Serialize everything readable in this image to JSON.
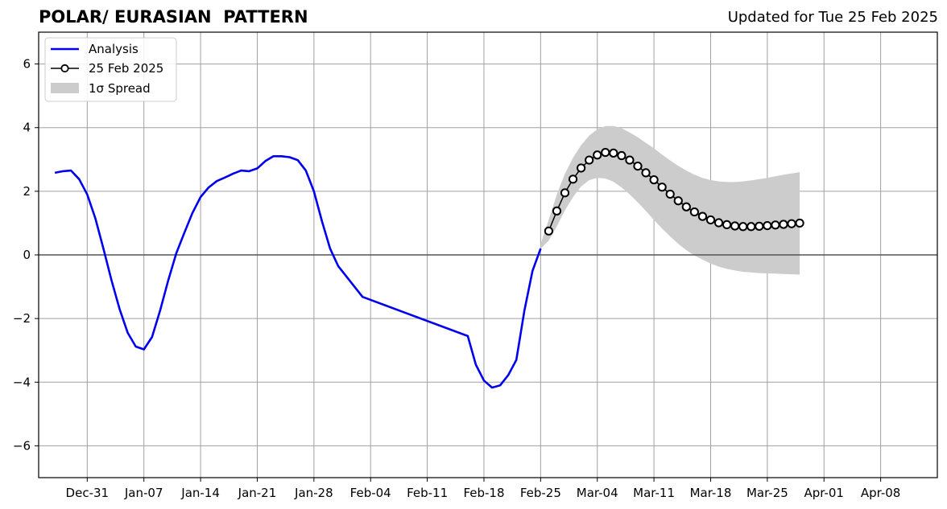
{
  "chart_data": {
    "type": "line",
    "title": "POLAR/ EURASIAN  PATTERN",
    "subtitle": "Updated for Tue 25 Feb 2025",
    "xlabel": "",
    "ylabel": "",
    "ylim": [
      -7,
      7
    ],
    "xlim": [
      "2024-12-25",
      "2025-04-15"
    ],
    "grid": true,
    "legend_position": "top-left",
    "x_ticks": [
      "Dec-31",
      "Jan-07",
      "Jan-14",
      "Jan-21",
      "Jan-28",
      "Feb-04",
      "Feb-11",
      "Feb-18",
      "Feb-25",
      "Mar-04",
      "Mar-11",
      "Mar-18",
      "Mar-25",
      "Apr-01",
      "Apr-08"
    ],
    "x_tick_dates": [
      "2024-12-31",
      "2025-01-07",
      "2025-01-14",
      "2025-01-21",
      "2025-01-28",
      "2025-02-04",
      "2025-02-11",
      "2025-02-18",
      "2025-02-25",
      "2025-03-04",
      "2025-03-11",
      "2025-03-18",
      "2025-03-25",
      "2025-04-01",
      "2025-04-08"
    ],
    "y_ticks": [
      -6,
      -4,
      -2,
      0,
      2,
      4,
      6
    ],
    "series": [
      {
        "name": "Analysis",
        "color": "#0000ee",
        "points": [
          [
            "2024-12-27",
            2.58
          ],
          [
            "2024-12-28",
            2.63
          ],
          [
            "2024-12-29",
            2.65
          ],
          [
            "2024-12-30",
            2.38
          ],
          [
            "2024-12-31",
            1.9
          ],
          [
            "2025-01-01",
            1.15
          ],
          [
            "2025-01-02",
            0.2
          ],
          [
            "2025-01-03",
            -0.8
          ],
          [
            "2025-01-04",
            -1.7
          ],
          [
            "2025-01-05",
            -2.45
          ],
          [
            "2025-01-06",
            -2.88
          ],
          [
            "2025-01-07",
            -2.97
          ],
          [
            "2025-01-08",
            -2.58
          ],
          [
            "2025-01-09",
            -1.75
          ],
          [
            "2025-01-10",
            -0.8
          ],
          [
            "2025-01-11",
            0.05
          ],
          [
            "2025-01-12",
            0.7
          ],
          [
            "2025-01-13",
            1.32
          ],
          [
            "2025-01-14",
            1.82
          ],
          [
            "2025-01-15",
            2.12
          ],
          [
            "2025-01-16",
            2.32
          ],
          [
            "2025-01-17",
            2.43
          ],
          [
            "2025-01-18",
            2.55
          ],
          [
            "2025-01-19",
            2.65
          ],
          [
            "2025-01-20",
            2.63
          ],
          [
            "2025-01-21",
            2.72
          ],
          [
            "2025-01-22",
            2.95
          ],
          [
            "2025-01-23",
            3.1
          ],
          [
            "2025-01-24",
            3.1
          ],
          [
            "2025-01-25",
            3.07
          ],
          [
            "2025-01-26",
            2.98
          ],
          [
            "2025-01-27",
            2.65
          ],
          [
            "2025-01-28",
            2.0
          ],
          [
            "2025-01-29",
            1.05
          ],
          [
            "2025-01-30",
            0.2
          ],
          [
            "2025-01-31",
            -0.35
          ],
          [
            "2025-02-03",
            -1.32
          ],
          [
            "2025-02-16",
            -2.55
          ],
          [
            "2025-02-17",
            -3.45
          ],
          [
            "2025-02-18",
            -3.95
          ],
          [
            "2025-02-19",
            -4.17
          ],
          [
            "2025-02-20",
            -4.1
          ],
          [
            "2025-02-21",
            -3.78
          ],
          [
            "2025-02-22",
            -3.3
          ],
          [
            "2025-02-23",
            -1.75
          ],
          [
            "2025-02-24",
            -0.5
          ],
          [
            "2025-02-25",
            0.2
          ]
        ]
      },
      {
        "name": "25 Feb 2025",
        "color": "#000000",
        "marker": "open-circle",
        "points": [
          [
            "2025-02-26",
            0.75
          ],
          [
            "2025-02-27",
            1.38
          ],
          [
            "2025-02-28",
            1.95
          ],
          [
            "2025-03-01",
            2.38
          ],
          [
            "2025-03-02",
            2.73
          ],
          [
            "2025-03-03",
            2.98
          ],
          [
            "2025-03-04",
            3.14
          ],
          [
            "2025-03-05",
            3.22
          ],
          [
            "2025-03-06",
            3.2
          ],
          [
            "2025-03-07",
            3.12
          ],
          [
            "2025-03-08",
            2.98
          ],
          [
            "2025-03-09",
            2.79
          ],
          [
            "2025-03-10",
            2.58
          ],
          [
            "2025-03-11",
            2.36
          ],
          [
            "2025-03-12",
            2.13
          ],
          [
            "2025-03-13",
            1.91
          ],
          [
            "2025-03-14",
            1.7
          ],
          [
            "2025-03-15",
            1.51
          ],
          [
            "2025-03-16",
            1.35
          ],
          [
            "2025-03-17",
            1.21
          ],
          [
            "2025-03-18",
            1.1
          ],
          [
            "2025-03-19",
            1.01
          ],
          [
            "2025-03-20",
            0.95
          ],
          [
            "2025-03-21",
            0.91
          ],
          [
            "2025-03-22",
            0.89
          ],
          [
            "2025-03-23",
            0.89
          ],
          [
            "2025-03-24",
            0.9
          ],
          [
            "2025-03-25",
            0.92
          ],
          [
            "2025-03-26",
            0.94
          ],
          [
            "2025-03-27",
            0.96
          ],
          [
            "2025-03-28",
            0.98
          ],
          [
            "2025-03-29",
            1.0
          ]
        ]
      }
    ],
    "spread": {
      "name": "1σ Spread",
      "color": "#cccccc",
      "upper": [
        [
          "2025-02-25",
          0.35
        ],
        [
          "2025-02-26",
          1.1
        ],
        [
          "2025-02-27",
          1.9
        ],
        [
          "2025-02-28",
          2.55
        ],
        [
          "2025-03-01",
          3.05
        ],
        [
          "2025-03-02",
          3.45
        ],
        [
          "2025-03-03",
          3.75
        ],
        [
          "2025-03-04",
          3.95
        ],
        [
          "2025-03-05",
          4.05
        ],
        [
          "2025-03-06",
          4.05
        ],
        [
          "2025-03-07",
          3.98
        ],
        [
          "2025-03-08",
          3.85
        ],
        [
          "2025-03-09",
          3.7
        ],
        [
          "2025-03-10",
          3.52
        ],
        [
          "2025-03-11",
          3.35
        ],
        [
          "2025-03-12",
          3.15
        ],
        [
          "2025-03-13",
          2.97
        ],
        [
          "2025-03-14",
          2.8
        ],
        [
          "2025-03-15",
          2.65
        ],
        [
          "2025-03-16",
          2.52
        ],
        [
          "2025-03-17",
          2.42
        ],
        [
          "2025-03-18",
          2.35
        ],
        [
          "2025-03-19",
          2.31
        ],
        [
          "2025-03-20",
          2.29
        ],
        [
          "2025-03-21",
          2.29
        ],
        [
          "2025-03-22",
          2.31
        ],
        [
          "2025-03-23",
          2.34
        ],
        [
          "2025-03-24",
          2.38
        ],
        [
          "2025-03-25",
          2.42
        ],
        [
          "2025-03-26",
          2.47
        ],
        [
          "2025-03-27",
          2.52
        ],
        [
          "2025-03-28",
          2.56
        ],
        [
          "2025-03-29",
          2.6
        ]
      ],
      "lower": [
        [
          "2025-02-25",
          0.2
        ],
        [
          "2025-02-26",
          0.45
        ],
        [
          "2025-02-27",
          0.9
        ],
        [
          "2025-02-28",
          1.4
        ],
        [
          "2025-03-01",
          1.82
        ],
        [
          "2025-03-02",
          2.15
        ],
        [
          "2025-03-03",
          2.35
        ],
        [
          "2025-03-04",
          2.42
        ],
        [
          "2025-03-05",
          2.4
        ],
        [
          "2025-03-06",
          2.3
        ],
        [
          "2025-03-07",
          2.12
        ],
        [
          "2025-03-08",
          1.9
        ],
        [
          "2025-03-09",
          1.65
        ],
        [
          "2025-03-10",
          1.38
        ],
        [
          "2025-03-11",
          1.1
        ],
        [
          "2025-03-12",
          0.83
        ],
        [
          "2025-03-13",
          0.58
        ],
        [
          "2025-03-14",
          0.35
        ],
        [
          "2025-03-15",
          0.15
        ],
        [
          "2025-03-16",
          -0.02
        ],
        [
          "2025-03-17",
          -0.15
        ],
        [
          "2025-03-18",
          -0.27
        ],
        [
          "2025-03-19",
          -0.37
        ],
        [
          "2025-03-20",
          -0.44
        ],
        [
          "2025-03-21",
          -0.49
        ],
        [
          "2025-03-22",
          -0.53
        ],
        [
          "2025-03-23",
          -0.55
        ],
        [
          "2025-03-24",
          -0.57
        ],
        [
          "2025-03-25",
          -0.58
        ],
        [
          "2025-03-26",
          -0.59
        ],
        [
          "2025-03-27",
          -0.6
        ],
        [
          "2025-03-28",
          -0.61
        ],
        [
          "2025-03-29",
          -0.62
        ]
      ]
    },
    "reference_line": {
      "y": 0,
      "color": "#555555"
    }
  }
}
